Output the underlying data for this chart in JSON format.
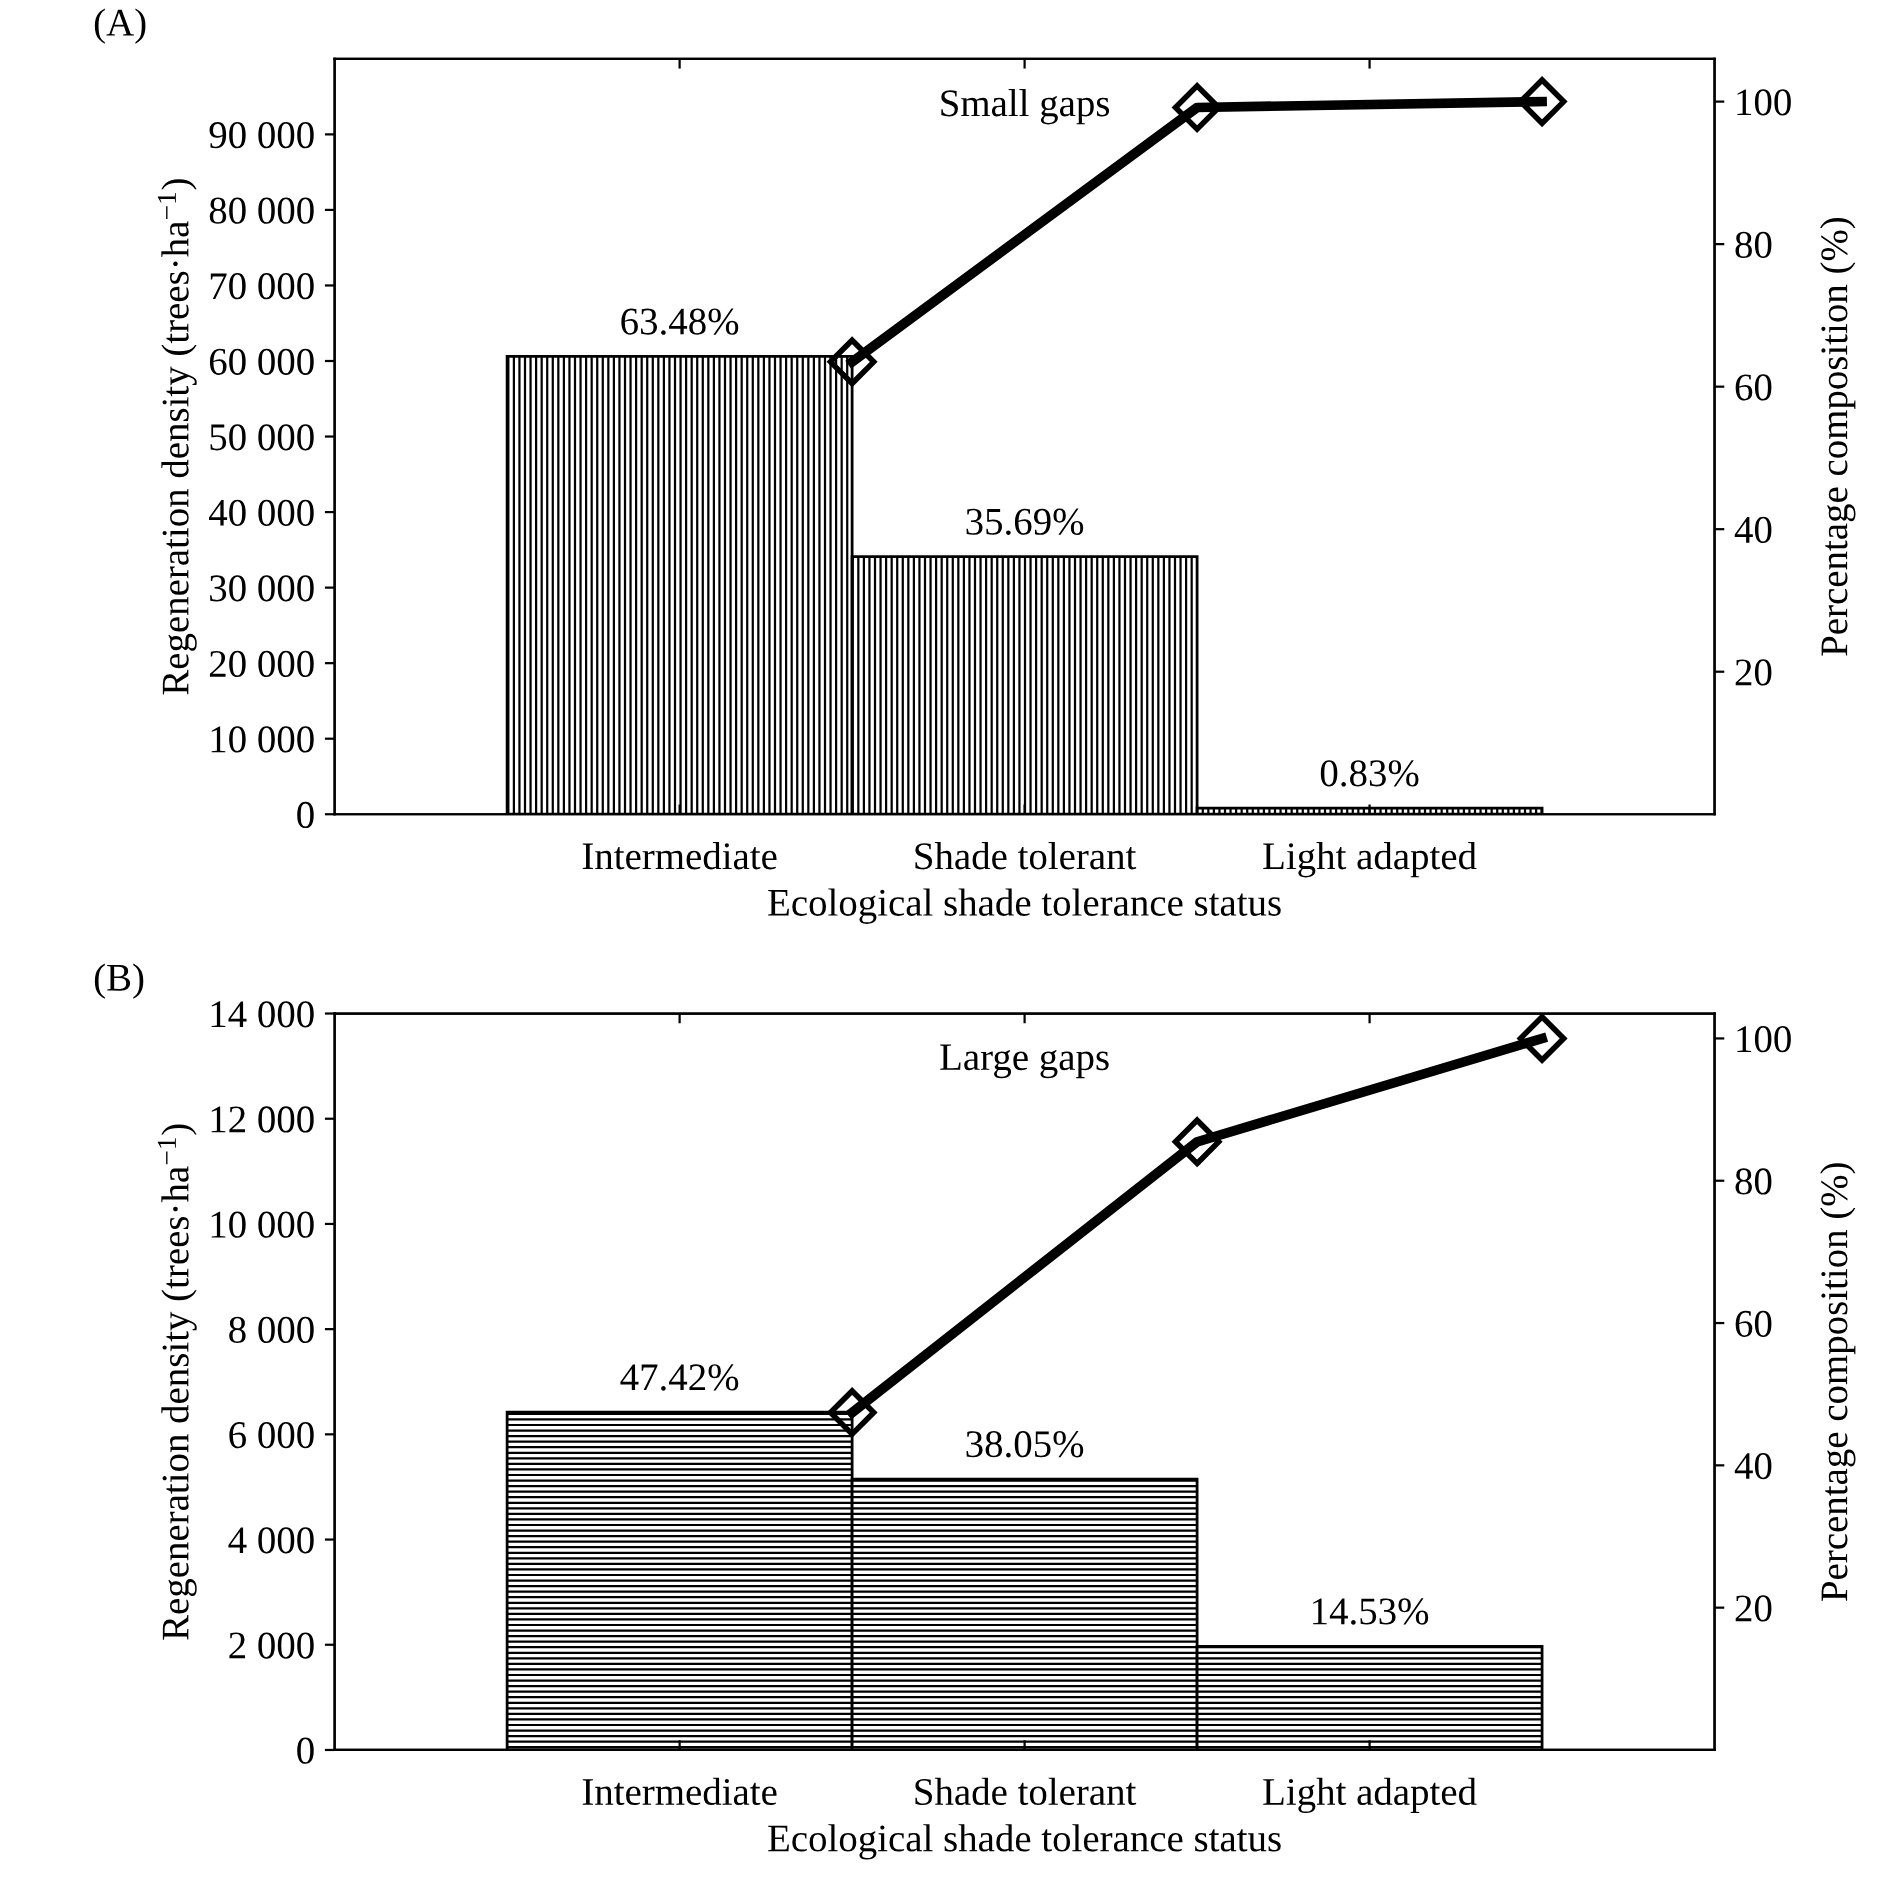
{
  "chart_data": [
    {
      "type": "bar",
      "xlabel": "Ecological shade tolerance status",
      "ylabel": "Regeneration density (trees·ha$^{−1}$)",
      "y2label": "Percentage composition (%)",
      "annotations": [
        "(A)",
        "Small gaps",
        {
          "text": "63.48%",
          "x": "Intermediate",
          "y": 60600
        },
        {
          "text": "35.69%",
          "x": "Shade tolerant",
          "y": 34100
        },
        {
          "text": "0.83%",
          "x": "Light adapted",
          "y": 800
        }
      ],
      "categories": [
        "Intermediate",
        null,
        "Shade tolerant",
        null,
        "Light adapted",
        null
      ],
      "series": [
        {
          "color": "#000000",
          "values": [
            60600,
            null,
            34100,
            null,
            800,
            null
          ]
        },
        {
          "type": "line",
          "axis": "y2",
          "color": "#000000",
          "values": [
            null,
            63.48,
            null,
            99.17,
            null,
            100
          ],
          "marker": "diamond",
          "line_style": "solid"
        }
      ],
      "ylim": [
        0,
        100000
      ],
      "yticks": [
        0,
        {
          "value": 10000,
          "label": "10 000"
        },
        {
          "value": 20000,
          "label": "20 000"
        },
        {
          "value": 30000,
          "label": "30 000"
        },
        {
          "value": 40000,
          "label": "40 000"
        },
        {
          "value": 50000,
          "label": "50 000"
        },
        {
          "value": 60000,
          "label": "60 000"
        },
        {
          "value": 70000,
          "label": "70 000"
        },
        {
          "value": 80000,
          "label": "80 000"
        },
        {
          "value": 90000,
          "label": "90 000"
        }
      ],
      "y2lim": [
        0,
        106
      ],
      "y2ticks": [
        20,
        40,
        60,
        80,
        100
      ],
      "grid": false,
      "legend": false
    },
    {
      "type": "bar",
      "xlabel": "Ecological shade tolerance status",
      "ylabel": "Regeneration density (trees·ha$^{−1}$)",
      "y2label": "Percentage composition (%)",
      "annotations": [
        "(B)",
        "Large gaps",
        {
          "text": "47.42%",
          "x": "Intermediate",
          "y": 6420
        },
        {
          "text": "38.05%",
          "x": "Shade tolerant",
          "y": 5150
        },
        {
          "text": "14.53%",
          "x": "Light adapted",
          "y": 1970
        }
      ],
      "categories": [
        "Intermediate",
        null,
        "Shade tolerant",
        null,
        "Light adapted",
        null
      ],
      "series": [
        {
          "color": "#000000",
          "values": [
            6420,
            null,
            5150,
            null,
            1970,
            null
          ]
        },
        {
          "type": "line",
          "axis": "y2",
          "color": "#000000",
          "values": [
            null,
            47.42,
            null,
            85.47,
            null,
            100
          ],
          "marker": "diamond",
          "line_style": "solid"
        }
      ],
      "ylim": [
        0,
        14000
      ],
      "yticks": [
        0,
        {
          "value": 2000,
          "label": "2 000"
        },
        {
          "value": 4000,
          "label": "4 000"
        },
        {
          "value": 6000,
          "label": "6 000"
        },
        {
          "value": 8000,
          "label": "8 000"
        },
        {
          "value": 10000,
          "label": "10 000"
        },
        {
          "value": 12000,
          "label": "12 000"
        },
        {
          "value": 14000,
          "label": "14 000"
        }
      ],
      "y2lim": [
        0,
        103.5
      ],
      "y2ticks": [
        20,
        40,
        60,
        80,
        100
      ],
      "grid": false,
      "legend": false
    }
  ]
}
